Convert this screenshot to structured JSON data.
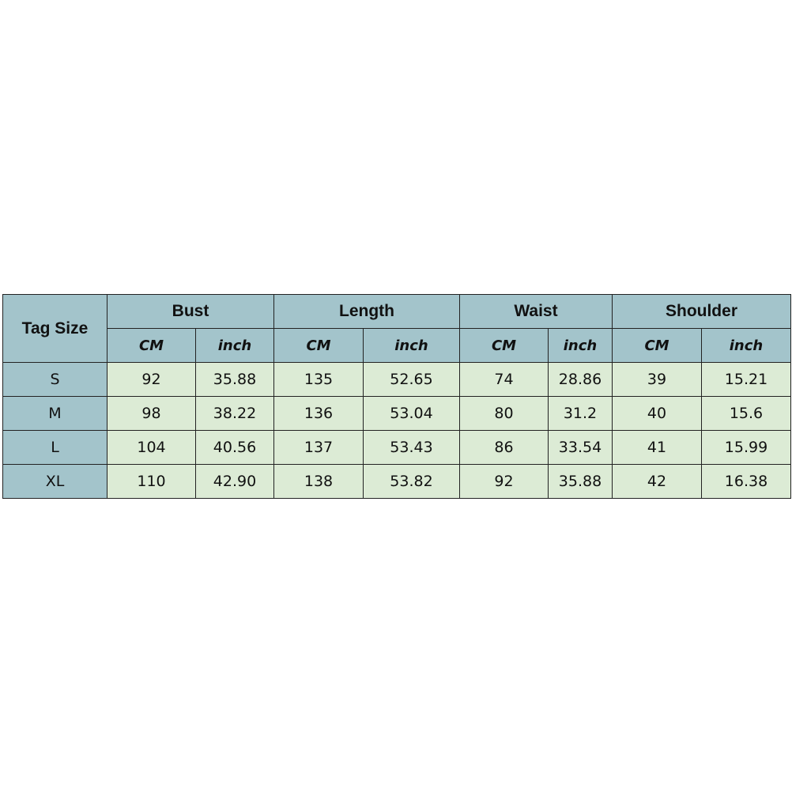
{
  "table": {
    "tag_header": "Tag Size",
    "groups": [
      "Bust",
      "Length",
      "Waist",
      "Shoulder"
    ],
    "units": [
      "CM",
      "inch"
    ],
    "rows": [
      {
        "size": "S",
        "values": [
          "92",
          "35.88",
          "135",
          "52.65",
          "74",
          "28.86",
          "39",
          "15.21"
        ]
      },
      {
        "size": "M",
        "values": [
          "98",
          "38.22",
          "136",
          "53.04",
          "80",
          "31.2",
          "40",
          "15.6"
        ]
      },
      {
        "size": "L",
        "values": [
          "104",
          "40.56",
          "137",
          "53.43",
          "86",
          "33.54",
          "41",
          "15.99"
        ]
      },
      {
        "size": "XL",
        "values": [
          "110",
          "42.90",
          "138",
          "53.82",
          "92",
          "35.88",
          "42",
          "16.38"
        ]
      }
    ],
    "colors": {
      "header": "#a3c4cb",
      "data": "#dcebd5"
    }
  }
}
